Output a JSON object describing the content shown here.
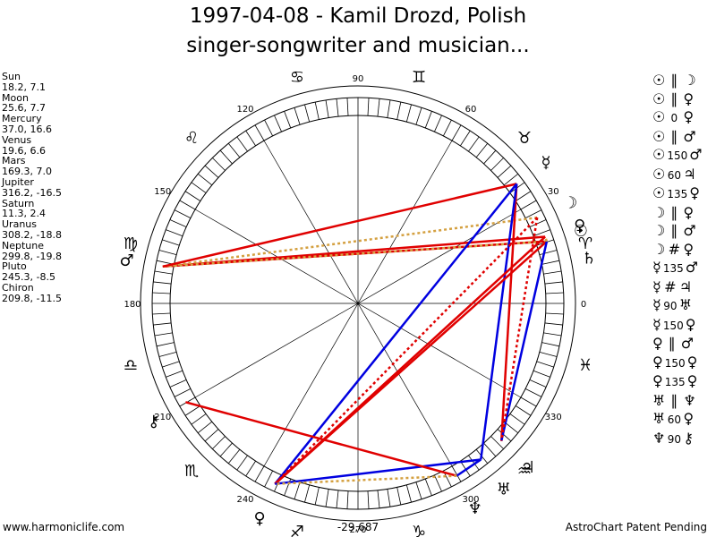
{
  "title": {
    "line1": "1997-04-08 - Kamil Drozd, Polish",
    "line2": "singer-songwriter and musician..."
  },
  "planets": [
    {
      "name": "Sun",
      "values": "18.2, 7.1"
    },
    {
      "name": "Moon",
      "values": "25.6, 7.7"
    },
    {
      "name": "Mercury",
      "values": "37.0, 16.6"
    },
    {
      "name": "Venus",
      "values": "19.6, 6.6"
    },
    {
      "name": "Mars",
      "values": "169.3, 7.0"
    },
    {
      "name": "Jupiter",
      "values": "316.2, -16.5"
    },
    {
      "name": "Saturn",
      "values": "11.3, 2.4"
    },
    {
      "name": "Uranus",
      "values": "308.2, -18.8"
    },
    {
      "name": "Neptune",
      "values": "299.8, -19.8"
    },
    {
      "name": "Pluto",
      "values": "245.3, -8.5"
    },
    {
      "name": "Chiron",
      "values": "209.8, -11.5"
    }
  ],
  "aspects": [
    {
      "p1": "☉",
      "sym": "∥",
      "p2": "☽"
    },
    {
      "p1": "☉",
      "sym": "∥",
      "p2": "♀"
    },
    {
      "p1": "☉",
      "sym": "0",
      "p2": "♀"
    },
    {
      "p1": "☉",
      "sym": "∥",
      "p2": "♂"
    },
    {
      "p1": "☉",
      "sym": "150",
      "p2": "♂"
    },
    {
      "p1": "☉",
      "sym": "60",
      "p2": "♃"
    },
    {
      "p1": "☉",
      "sym": "135",
      "p2": "♀"
    },
    {
      "p1": "☽",
      "sym": "∥",
      "p2": "♀"
    },
    {
      "p1": "☽",
      "sym": "∥",
      "p2": "♂"
    },
    {
      "p1": "☽",
      "sym": "#",
      "p2": "♀"
    },
    {
      "p1": "☿",
      "sym": "135",
      "p2": "♂"
    },
    {
      "p1": "☿",
      "sym": "#",
      "p2": "♃"
    },
    {
      "p1": "☿",
      "sym": "90",
      "p2": "♅"
    },
    {
      "p1": "☿",
      "sym": "150",
      "p2": "♀"
    },
    {
      "p1": "♀",
      "sym": "∥",
      "p2": "♂"
    },
    {
      "p1": "♀",
      "sym": "150",
      "p2": "♀"
    },
    {
      "p1": "♀",
      "sym": "135",
      "p2": "♀"
    },
    {
      "p1": "♅",
      "sym": "∥",
      "p2": "♆"
    },
    {
      "p1": "♅",
      "sym": "60",
      "p2": "♀"
    },
    {
      "p1": "♆",
      "sym": "90",
      "p2": "⚷"
    }
  ],
  "wheel": {
    "degree_labels": [
      {
        "deg": 0,
        "text": "0"
      },
      {
        "deg": 30,
        "text": "30"
      },
      {
        "deg": 60,
        "text": "60"
      },
      {
        "deg": 90,
        "text": "90"
      },
      {
        "deg": 120,
        "text": "120"
      },
      {
        "deg": 150,
        "text": "150"
      },
      {
        "deg": 180,
        "text": "180"
      },
      {
        "deg": 210,
        "text": "210"
      },
      {
        "deg": 240,
        "text": "240"
      },
      {
        "deg": 270,
        "text": "270"
      },
      {
        "deg": 300,
        "text": "300"
      },
      {
        "deg": 330,
        "text": "330"
      }
    ],
    "signs": [
      {
        "deg": 15,
        "glyph": "♈"
      },
      {
        "deg": 45,
        "glyph": "♉"
      },
      {
        "deg": 75,
        "glyph": "♊"
      },
      {
        "deg": 105,
        "glyph": "♋"
      },
      {
        "deg": 135,
        "glyph": "♌"
      },
      {
        "deg": 165,
        "glyph": "♍"
      },
      {
        "deg": 195,
        "glyph": "♎"
      },
      {
        "deg": 225,
        "glyph": "♏"
      },
      {
        "deg": 255,
        "glyph": "♐"
      },
      {
        "deg": 285,
        "glyph": "♑"
      },
      {
        "deg": 315,
        "glyph": "♒"
      },
      {
        "deg": 345,
        "glyph": "♓"
      }
    ],
    "bodies": [
      {
        "name": "sun",
        "glyph": "☉",
        "lon": 18.2
      },
      {
        "name": "moon",
        "glyph": "☽",
        "lon": 25.6
      },
      {
        "name": "mercury",
        "glyph": "☿",
        "lon": 37.0
      },
      {
        "name": "venus",
        "glyph": "♀",
        "lon": 19.6
      },
      {
        "name": "mars",
        "glyph": "♂",
        "lon": 169.3
      },
      {
        "name": "jupiter",
        "glyph": "♃",
        "lon": 316.2
      },
      {
        "name": "saturn",
        "glyph": "♄",
        "lon": 11.3
      },
      {
        "name": "uranus",
        "glyph": "♅",
        "lon": 308.2
      },
      {
        "name": "neptune",
        "glyph": "♆",
        "lon": 299.8
      },
      {
        "name": "pluto",
        "glyph": "♀",
        "lon": 245.3
      },
      {
        "name": "chiron",
        "glyph": "⚷",
        "lon": 209.8
      }
    ],
    "aspect_lines": [
      {
        "a": "venus",
        "b": "mars",
        "color": "#e00000",
        "style": "solid"
      },
      {
        "a": "sun",
        "b": "mars",
        "color": "#e00000",
        "style": "solid"
      },
      {
        "a": "moon",
        "b": "mars",
        "color": "#d4a040",
        "style": "dotted"
      },
      {
        "a": "sun",
        "b": "mars",
        "color": "#d4a040",
        "style": "dotted"
      },
      {
        "a": "mercury",
        "b": "mars",
        "color": "#e00000",
        "style": "solid"
      },
      {
        "a": "mercury",
        "b": "pluto",
        "color": "#0000e0",
        "style": "solid"
      },
      {
        "a": "mercury",
        "b": "jupiter",
        "color": "#e00000",
        "style": "solid"
      },
      {
        "a": "mercury",
        "b": "uranus",
        "color": "#0000e0",
        "style": "solid"
      },
      {
        "a": "sun",
        "b": "pluto",
        "color": "#e00000",
        "style": "solid"
      },
      {
        "a": "venus",
        "b": "pluto",
        "color": "#e00000",
        "style": "solid"
      },
      {
        "a": "moon",
        "b": "pluto",
        "color": "#e00000",
        "style": "dotted"
      },
      {
        "a": "sun",
        "b": "jupiter",
        "color": "#0000e0",
        "style": "solid"
      },
      {
        "a": "uranus",
        "b": "neptune",
        "color": "#0000e0",
        "style": "solid"
      },
      {
        "a": "uranus",
        "b": "pluto",
        "color": "#0000e0",
        "style": "solid"
      },
      {
        "a": "neptune",
        "b": "chiron",
        "color": "#e00000",
        "style": "solid"
      },
      {
        "a": "neptune",
        "b": "pluto",
        "color": "#d4a040",
        "style": "dotted"
      },
      {
        "a": "moon",
        "b": "jupiter",
        "color": "#e00000",
        "style": "dotted"
      },
      {
        "a": "sun",
        "b": "venus",
        "color": "#d4a040",
        "style": "dotted"
      }
    ]
  },
  "footer": {
    "left": "www.harmoniclife.com",
    "center": "-29,687",
    "right": "AstroChart Patent Pending"
  }
}
